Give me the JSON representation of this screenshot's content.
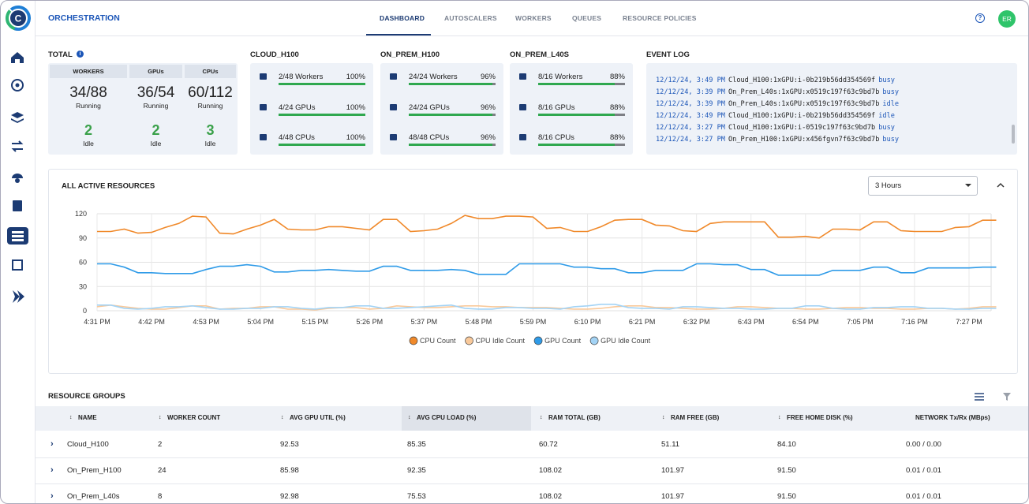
{
  "app": {
    "logo": "C",
    "title": "ORCHESTRATION",
    "tabs": [
      "DASHBOARD",
      "AUTOSCALERS",
      "WORKERS",
      "QUEUES",
      "RESOURCE POLICIES"
    ],
    "help": "?",
    "user_initials": "ER"
  },
  "total": {
    "title": "TOTAL",
    "columns": [
      {
        "header": "WORKERS",
        "running": "34/88",
        "running_label": "Running",
        "idle": "2",
        "idle_label": "Idle"
      },
      {
        "header": "GPUs",
        "running": "36/54",
        "running_label": "Running",
        "idle": "2",
        "idle_label": "Idle"
      },
      {
        "header": "CPUs",
        "running": "60/112",
        "running_label": "Running",
        "idle": "3",
        "idle_label": "Idle"
      }
    ]
  },
  "clusters": [
    {
      "title": "CLOUD_H100",
      "rows": [
        {
          "label": "2/48 Workers",
          "percent": 100,
          "percent_label": "100%"
        },
        {
          "label": "4/24 GPUs",
          "percent": 100,
          "percent_label": "100%"
        },
        {
          "label": "4/48 CPUs",
          "percent": 100,
          "percent_label": "100%"
        }
      ]
    },
    {
      "title": "ON_PREM_H100",
      "rows": [
        {
          "label": "24/24 Workers",
          "percent": 96,
          "percent_label": "96%"
        },
        {
          "label": "24/24 GPUs",
          "percent": 96,
          "percent_label": "96%"
        },
        {
          "label": "48/48 CPUs",
          "percent": 96,
          "percent_label": "96%"
        }
      ]
    },
    {
      "title": "ON_PREM_L40S",
      "rows": [
        {
          "label": "8/16 Workers",
          "percent": 88,
          "percent_label": "88%"
        },
        {
          "label": "8/16 GPUs",
          "percent": 88,
          "percent_label": "88%"
        },
        {
          "label": "8/16 CPUs",
          "percent": 88,
          "percent_label": "88%"
        }
      ]
    }
  ],
  "event_log": {
    "title": "EVENT LOG",
    "entries": [
      {
        "time": "12/12/24, 3:49 PM",
        "text": "Cloud_H100:1xGPU:i-0b219b56dd354569f",
        "status": "busy"
      },
      {
        "time": "12/12/24, 3:39 PM",
        "text": "On_Prem_L40s:1xGPU:x0519c197f63c9bd7b",
        "status": "busy"
      },
      {
        "time": "12/12/24, 3:39 PM",
        "text": "On_Prem_L40s:1xGPU:x0519c197f63c9bd7b",
        "status": "idle"
      },
      {
        "time": "12/12/24, 3:49 PM",
        "text": "Cloud_H100:1xGPU:i-0b219b56dd354569f",
        "status": "idle"
      },
      {
        "time": "12/12/24, 3:27 PM",
        "text": "Cloud_H100:1xGPU:i-0519c197f63c9bd7b",
        "status": "busy"
      },
      {
        "time": "12/12/24, 3:27 PM",
        "text": "On_Prem_H100:1xGPU:x456fgvn7f63c9bd7b",
        "status": "busy"
      }
    ]
  },
  "chart_controls": {
    "range": "3 Hours"
  },
  "chart_data": {
    "type": "line",
    "title": "ALL ACTIVE RESOURCES",
    "categories": [
      "4:31 PM",
      null,
      null,
      null,
      "4:42 PM",
      null,
      null,
      null,
      "4:53 PM",
      null,
      null,
      null,
      "5:04 PM",
      null,
      null,
      null,
      "5:15 PM",
      null,
      null,
      null,
      "5:26 PM",
      null,
      null,
      null,
      "5:37 PM",
      null,
      null,
      null,
      "5:48 PM",
      null,
      null,
      null,
      "5:59 PM",
      null,
      null,
      null,
      "6:10 PM",
      null,
      null,
      null,
      "6:21 PM",
      null,
      null,
      null,
      "6:32 PM",
      null,
      null,
      null,
      "6:43 PM",
      null,
      null,
      null,
      "6:54 PM",
      null,
      null,
      null,
      "7:05 PM",
      null,
      null,
      null,
      "7:16 PM",
      null,
      null,
      null,
      "7:27 PM",
      null,
      null
    ],
    "series": [
      {
        "name": "CPU Count",
        "color": "#f0892a",
        "values": [
          98,
          98,
          101,
          96,
          97,
          103,
          108,
          117,
          116,
          96,
          95,
          101,
          106,
          113,
          101,
          100,
          100,
          104,
          104,
          102,
          100,
          113,
          113,
          98,
          99,
          101,
          108,
          118,
          114,
          114,
          117,
          117,
          116,
          102,
          103,
          98,
          98,
          104,
          112,
          113,
          113,
          106,
          105,
          99,
          98,
          108,
          110,
          110,
          110,
          110,
          91,
          91,
          92,
          90,
          101,
          101,
          100,
          110,
          110,
          99,
          98,
          98,
          98,
          103,
          104,
          112,
          112
        ]
      },
      {
        "name": "CPU Idle Count",
        "color": "#f9c99a",
        "values": [
          5,
          7,
          5,
          3,
          2,
          2,
          4,
          6,
          6,
          2,
          3,
          3,
          5,
          5,
          2,
          2,
          1,
          3,
          4,
          4,
          2,
          3,
          6,
          5,
          4,
          4,
          5,
          6,
          6,
          5,
          5,
          4,
          4,
          4,
          3,
          2,
          2,
          3,
          5,
          6,
          6,
          4,
          4,
          3,
          2,
          2,
          3,
          5,
          5,
          4,
          3,
          3,
          2,
          2,
          3,
          4,
          4,
          3,
          3,
          2,
          2,
          3,
          3,
          2,
          3,
          5,
          5
        ]
      },
      {
        "name": "GPU Count",
        "color": "#2f9be8",
        "values": [
          58,
          58,
          54,
          47,
          47,
          46,
          46,
          46,
          51,
          55,
          55,
          57,
          55,
          48,
          48,
          50,
          50,
          51,
          50,
          49,
          49,
          55,
          55,
          50,
          50,
          50,
          51,
          50,
          45,
          45,
          45,
          58,
          58,
          58,
          58,
          54,
          54,
          52,
          52,
          47,
          47,
          50,
          50,
          50,
          58,
          58,
          57,
          57,
          51,
          51,
          44,
          44,
          44,
          44,
          50,
          50,
          50,
          54,
          54,
          47,
          47,
          53,
          53,
          53,
          53,
          54,
          54
        ]
      },
      {
        "name": "GPU Idle Count",
        "color": "#a3d3f5",
        "values": [
          7,
          7,
          3,
          2,
          3,
          5,
          5,
          6,
          4,
          2,
          2,
          3,
          3,
          5,
          5,
          3,
          2,
          4,
          4,
          6,
          6,
          3,
          3,
          4,
          5,
          6,
          7,
          3,
          2,
          2,
          4,
          4,
          3,
          3,
          2,
          5,
          6,
          8,
          8,
          4,
          3,
          3,
          2,
          5,
          5,
          4,
          3,
          3,
          2,
          2,
          3,
          3,
          6,
          6,
          3,
          2,
          2,
          4,
          4,
          5,
          5,
          3,
          3,
          2,
          2,
          3,
          3
        ]
      }
    ],
    "ylim": [
      0,
      120
    ],
    "yticks": [
      0,
      30,
      60,
      90,
      120
    ],
    "grid": true
  },
  "resource_groups": {
    "title": "RESOURCE GROUPS",
    "columns": [
      "NAME",
      "WORKER COUNT",
      "AVG GPU UTIL (%)",
      "AVG CPU LOAD (%)",
      "RAM TOTAL (GB)",
      "RAM FREE (GB)",
      "FREE HOME DISK (%)",
      "NETWORK Tx/Rx (MBps)"
    ],
    "rows": [
      [
        "Cloud_H100",
        "2",
        "92.53",
        "85.35",
        "60.72",
        "51.11",
        "84.10",
        "0.00 / 0.00"
      ],
      [
        "On_Prem_H100",
        "24",
        "85.98",
        "92.35",
        "108.02",
        "101.97",
        "91.50",
        "0.01 / 0.01"
      ],
      [
        "On_Prem_L40s",
        "8",
        "92.98",
        "75.53",
        "108.02",
        "101.97",
        "91.50",
        "0.01 / 0.01"
      ]
    ]
  }
}
